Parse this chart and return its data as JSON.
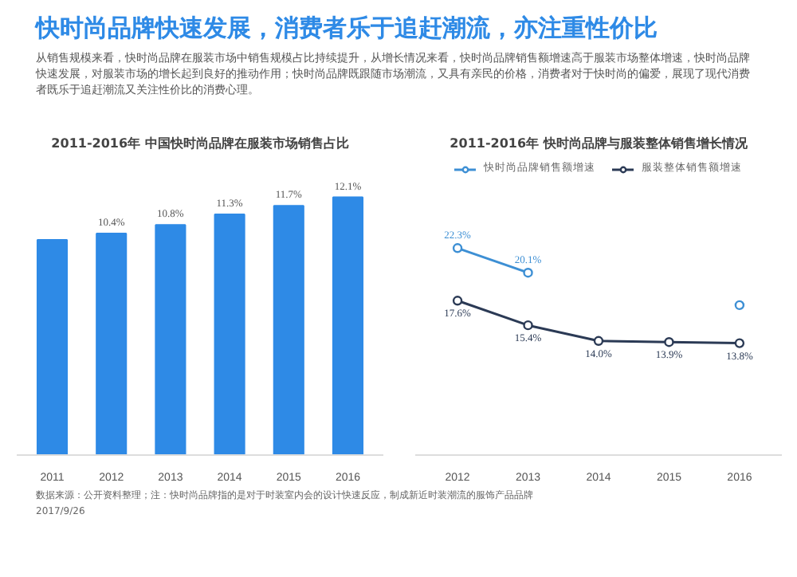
{
  "chart_data": [
    {
      "type": "other",
      "title": "快时尚品牌快速发展，消费者乐于追赶潮流，亦注重性价比",
      "subtitle": "从销售规模来看，快时尚品牌在服装市场中销售规模占比持续提升，从增长情况来看，快时尚品牌销售额增速高于服装市场整体增速，快时尚品牌快速发展，对服装市场的增长起到良好的推动作用；快时尚品牌既跟随市场潮流，又具有亲民的价格，消费者对于快时尚的偏爱，展现了现代消费者既乐于追赶潮流又关注性价比的消费心理。",
      "annotations": [
        "数据来源：公开资料整理；注：快时尚品牌指的是对于时装室内会的设计快速反应，制成新近时装潮流的服饰产品品牌",
        "2017/9/26"
      ]
    },
    {
      "type": "bar",
      "title": "2011-2016年 中国快时尚品牌在服装市场销售占比",
      "categories": [
        "2011",
        "2012",
        "2013",
        "2014",
        "2015",
        "2016"
      ],
      "values": [
        10.1,
        10.4,
        10.8,
        11.3,
        11.7,
        12.1
      ],
      "value_labels": [
        null,
        "10.4%",
        "10.8%",
        "11.3%",
        "11.7%",
        "12.1%"
      ],
      "color": "#2e8ae6",
      "tick_labels": "x",
      "grid": false
    },
    {
      "type": "line",
      "title": "2011-2016年 快时尚品牌与服装整体销售增长情况",
      "categories": [
        "2012",
        "2013",
        "2014",
        "2015",
        "2016"
      ],
      "series": [
        {
          "name": "快时尚品牌销售额增速",
          "color": "#3d8fd4",
          "values": [
            22.3,
            20.1,
            null,
            null,
            17.2
          ],
          "value_labels": [
            "22.3%",
            "20.1%",
            null,
            null,
            null
          ]
        },
        {
          "name": "服装整体销售额增速",
          "color": "#2b3a55",
          "values": [
            17.6,
            15.4,
            14.0,
            13.9,
            13.8
          ],
          "value_labels": [
            "17.6%",
            "15.4%",
            "14.0%",
            "13.9%",
            "13.8%"
          ]
        }
      ],
      "marker": "circle",
      "legend": "top",
      "tick_labels": "x",
      "grid": false
    }
  ]
}
